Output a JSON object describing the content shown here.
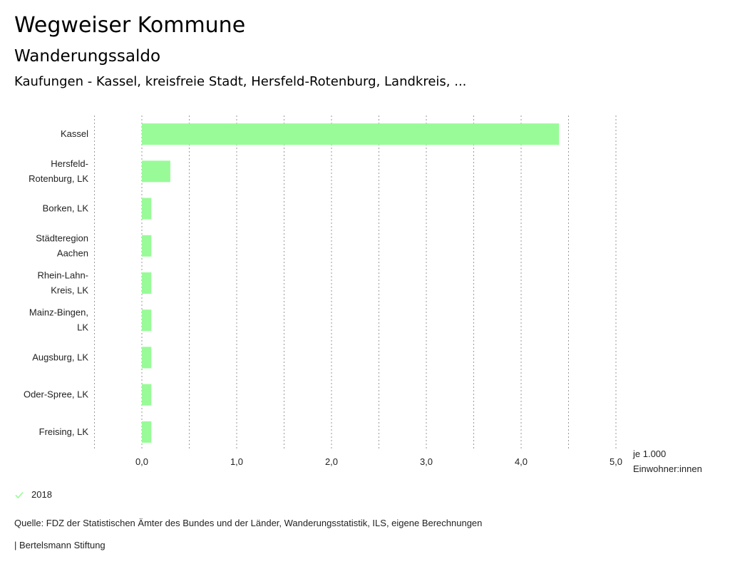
{
  "header": {
    "title": "Wegweiser Kommune",
    "subtitle": "Wanderungssaldo",
    "selection": "Kaufungen - Kassel, kreisfreie Stadt, Hersfeld-Rotenburg, Landkreis, ..."
  },
  "legend": {
    "label": "2018",
    "color": "#98fb98"
  },
  "footer": {
    "source": "Quelle: FDZ der Statistischen Ämter des Bundes und der Länder, Wanderungsstatistik, ILS, eigene Berechnungen",
    "credit": "| Bertelsmann Stiftung"
  },
  "chart_data": {
    "type": "bar",
    "orientation": "horizontal",
    "categories": [
      [
        "Kassel"
      ],
      [
        "Hersfeld-",
        "Rotenburg, LK"
      ],
      [
        "Borken, LK"
      ],
      [
        "Städteregion",
        "Aachen"
      ],
      [
        "Rhein-Lahn-",
        "Kreis, LK"
      ],
      [
        "Mainz-Bingen,",
        "LK"
      ],
      [
        "Augsburg, LK"
      ],
      [
        "Oder-Spree, LK"
      ],
      [
        "Freising, LK"
      ]
    ],
    "series": [
      {
        "name": "2018",
        "color": "#98fb98",
        "values": [
          4.4,
          0.3,
          0.1,
          0.1,
          0.1,
          0.1,
          0.1,
          0.1,
          0.1
        ]
      }
    ],
    "xlim": [
      -0.5,
      5.0
    ],
    "xticks": [
      0,
      1,
      2,
      3,
      4,
      5
    ],
    "xtick_labels": [
      "0,0",
      "1,0",
      "2,0",
      "3,0",
      "4,0",
      "5,0"
    ],
    "gridlines": [
      -0.5,
      0,
      0.5,
      1,
      1.5,
      2,
      2.5,
      3,
      3.5,
      4,
      4.5,
      5
    ],
    "unit_label": [
      "je 1.000",
      "Einwohner:innen"
    ],
    "grid": true,
    "legend_position": "bottom-left"
  }
}
